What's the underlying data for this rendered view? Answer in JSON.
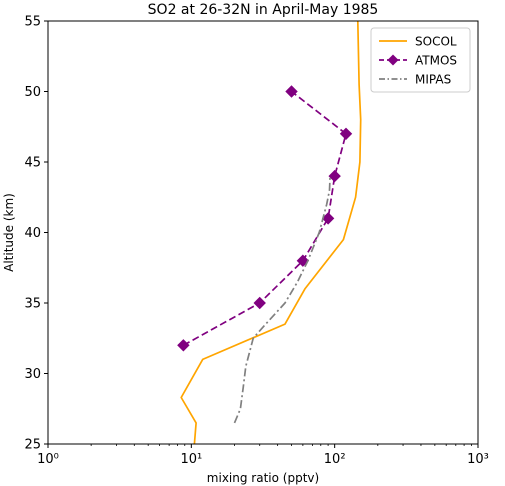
{
  "chart_data": {
    "type": "line",
    "title": "SO2 at 26-32N in April-May 1985",
    "xlabel": "mixing ratio (pptv)",
    "ylabel": "Altitude (km)",
    "xscale": "log",
    "xlim": [
      1,
      1000
    ],
    "ylim": [
      25,
      55
    ],
    "x_ticks": [
      {
        "value": 1,
        "label": "10⁰"
      },
      {
        "value": 10,
        "label": "10¹"
      },
      {
        "value": 100,
        "label": "10²"
      },
      {
        "value": 1000,
        "label": "10³"
      }
    ],
    "y_ticks": [
      25,
      30,
      35,
      40,
      45,
      50,
      55
    ],
    "legend_position": "top-right",
    "series": [
      {
        "name": "SOCOL",
        "color": "#FFA500",
        "dash": "solid",
        "marker": "none",
        "points": [
          {
            "x": 10.5,
            "y": 25.0
          },
          {
            "x": 10.8,
            "y": 26.5
          },
          {
            "x": 8.5,
            "y": 28.3
          },
          {
            "x": 12.0,
            "y": 31.0
          },
          {
            "x": 45.0,
            "y": 33.5
          },
          {
            "x": 62.0,
            "y": 36.0
          },
          {
            "x": 115.0,
            "y": 39.5
          },
          {
            "x": 140.0,
            "y": 42.5
          },
          {
            "x": 150.0,
            "y": 45.0
          },
          {
            "x": 152.0,
            "y": 48.0
          },
          {
            "x": 148.0,
            "y": 50.5
          },
          {
            "x": 145.0,
            "y": 55.0
          }
        ]
      },
      {
        "name": "ATMOS",
        "color": "#800080",
        "dash": "dashed",
        "marker": "diamond",
        "points": [
          {
            "x": 8.8,
            "y": 32.0
          },
          {
            "x": 30.0,
            "y": 35.0
          },
          {
            "x": 60.0,
            "y": 38.0
          },
          {
            "x": 90.0,
            "y": 41.0
          },
          {
            "x": 100.0,
            "y": 44.0
          },
          {
            "x": 120.0,
            "y": 47.0
          },
          {
            "x": 50.0,
            "y": 50.0
          }
        ]
      },
      {
        "name": "MIPAS",
        "color": "#808080",
        "dash": "dashdot",
        "marker": "none",
        "points": [
          {
            "x": 20.0,
            "y": 26.5
          },
          {
            "x": 22.0,
            "y": 27.5
          },
          {
            "x": 23.0,
            "y": 29.0
          },
          {
            "x": 24.0,
            "y": 30.5
          },
          {
            "x": 27.0,
            "y": 32.5
          },
          {
            "x": 33.0,
            "y": 33.5
          },
          {
            "x": 45.0,
            "y": 35.0
          },
          {
            "x": 55.0,
            "y": 36.5
          },
          {
            "x": 65.0,
            "y": 38.0
          },
          {
            "x": 78.0,
            "y": 40.0
          },
          {
            "x": 88.0,
            "y": 42.0
          },
          {
            "x": 92.0,
            "y": 43.0
          },
          {
            "x": 93.0,
            "y": 44.0
          }
        ]
      }
    ]
  }
}
